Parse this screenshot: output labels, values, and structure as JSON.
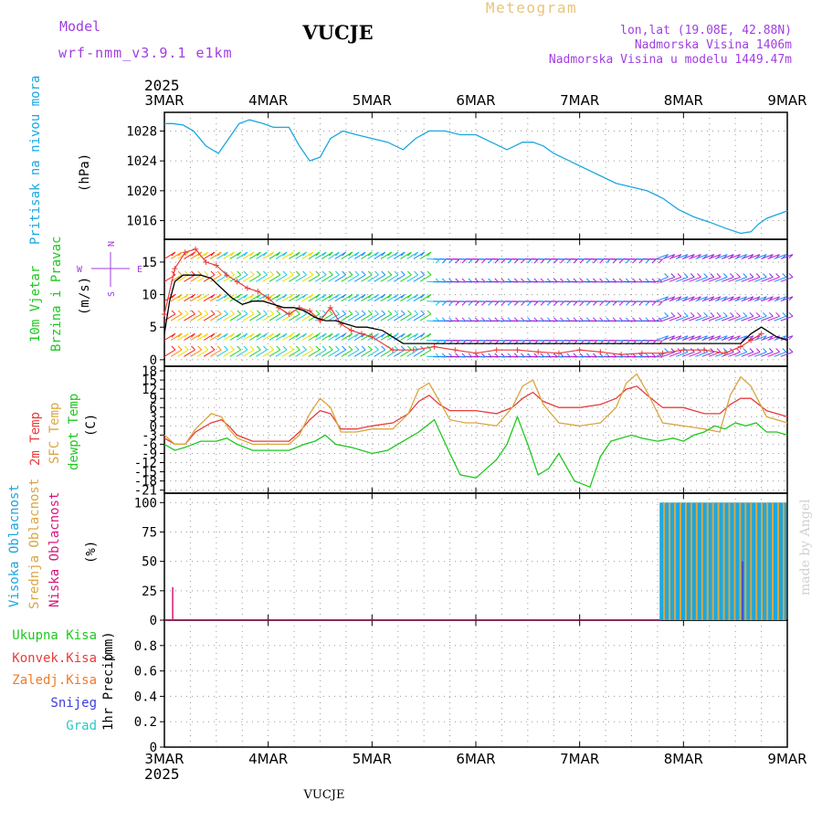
{
  "header": {
    "model_label": "Model",
    "model_name": "wrf-nmm_v3.9.1 e1km",
    "station": "VUCJE",
    "meteogram": "Meteogram",
    "coords": "lon,lat (19.08E, 42.88N)",
    "elevation": "Nadmorska Visina 1406m",
    "model_elevation": "Nadmorska Visina u modelu 1449.47m",
    "year_top": "2025",
    "year_bottom": "2025",
    "footer_station": "VUCJE",
    "credit": "made by Angel"
  },
  "colors": {
    "pressure": "#1aa7e0",
    "temp2m": "#e83c3c",
    "sfc_temp": "#d9a640",
    "dewpt": "#1ec81e",
    "wind_speed": "#000000",
    "gust": "#e83c3c",
    "high_cloud": "#1aa7e0",
    "mid_cloud": "#d9a640",
    "low_cloud": "#d6157a",
    "title_purple": "#a03ee0",
    "meteogram_gold": "#e8c47a",
    "total_precip": "#1ec81e",
    "conv_precip": "#e83c3c",
    "frozen_precip": "#f07a28",
    "snow": "#3c3ce0",
    "hail": "#2ac8c8"
  },
  "chart_data": [
    {
      "id": "pressure",
      "type": "line",
      "ylabel_name": "Pritisak na nivou mora",
      "unit": "(hPa)",
      "x_categories": [
        "3MAR",
        "4MAR",
        "5MAR",
        "6MAR",
        "7MAR",
        "8MAR",
        "9MAR"
      ],
      "ylim": [
        1013.5,
        1030.5
      ],
      "yticks": [
        1016,
        1020,
        1024,
        1028
      ],
      "grid": true,
      "x_days": [
        0,
        0.08,
        0.18,
        0.28,
        0.4,
        0.52,
        0.62,
        0.72,
        0.82,
        0.95,
        1.05,
        1.2,
        1.3,
        1.4,
        1.5,
        1.6,
        1.72,
        1.85,
        2.0,
        2.15,
        2.3,
        2.42,
        2.55,
        2.7,
        2.85,
        3.0,
        3.15,
        3.3,
        3.45,
        3.55,
        3.65,
        3.75,
        3.9,
        4.05,
        4.2,
        4.35,
        4.5,
        4.65,
        4.8,
        4.95,
        5.1,
        5.25,
        5.4,
        5.55,
        5.65,
        5.72,
        5.8,
        5.9,
        6.0
      ],
      "values": [
        1029,
        1029,
        1028.8,
        1028,
        1026,
        1025,
        1027,
        1029,
        1029.5,
        1029,
        1028.5,
        1028.5,
        1026,
        1024,
        1024.5,
        1027,
        1028,
        1027.5,
        1027,
        1026.5,
        1025.5,
        1027,
        1028,
        1028,
        1027.5,
        1027.5,
        1026.5,
        1025.5,
        1026.5,
        1026.5,
        1026,
        1025,
        1024,
        1023,
        1022,
        1021,
        1020.5,
        1020,
        1019,
        1017.5,
        1016.5,
        1015.8,
        1015,
        1014.3,
        1014.5,
        1015.5,
        1016.3,
        1016.8,
        1017.3
      ]
    },
    {
      "id": "wind",
      "type": "line",
      "ylabel_name": "10m Vjetar",
      "ylabel_name2": "Brzina i Pravac",
      "unit": "(m/s)",
      "compass_n": "N",
      "compass_s": "S",
      "compass_w": "W",
      "compass_e": "E",
      "ylim": [
        -1,
        18.5
      ],
      "yticks": [
        0,
        5,
        10,
        15
      ],
      "grid": true,
      "series": [
        {
          "role": "wind_speed",
          "x_days": [
            0,
            0.05,
            0.1,
            0.18,
            0.28,
            0.35,
            0.45,
            0.55,
            0.65,
            0.75,
            0.85,
            0.95,
            1.05,
            1.15,
            1.25,
            1.35,
            1.45,
            1.55,
            1.65,
            1.75,
            1.85,
            1.95,
            2.1,
            2.3,
            2.5,
            2.7,
            2.9,
            3.1,
            3.3,
            3.5,
            3.7,
            3.9,
            4.1,
            4.3,
            4.5,
            4.7,
            4.9,
            5.1,
            5.3,
            5.45,
            5.55,
            5.65,
            5.75,
            5.9,
            6.0
          ],
          "values": [
            4,
            9,
            12,
            13,
            13,
            13,
            12.5,
            11,
            9.5,
            8.5,
            9,
            9,
            8.5,
            8,
            8,
            7.5,
            6.5,
            6,
            6,
            5.5,
            5,
            5,
            4.5,
            2.5,
            2.5,
            2.5,
            2.5,
            2.5,
            2.5,
            2.5,
            2.5,
            2.5,
            2.5,
            2.5,
            2.5,
            2.5,
            2.5,
            2.5,
            2.5,
            2.5,
            2.5,
            4,
            5,
            3.5,
            3
          ]
        },
        {
          "role": "gust",
          "x_days": [
            0,
            0.1,
            0.2,
            0.3,
            0.4,
            0.5,
            0.6,
            0.7,
            0.8,
            0.9,
            1.0,
            1.1,
            1.2,
            1.3,
            1.4,
            1.5,
            1.6,
            1.7,
            1.8,
            1.9,
            2.0,
            2.2,
            2.4,
            2.6,
            2.8,
            3.0,
            3.2,
            3.4,
            3.6,
            3.8,
            4.0,
            4.2,
            4.4,
            4.6,
            4.8,
            5.0,
            5.2,
            5.4,
            5.55,
            5.65,
            5.75
          ],
          "values": [
            7,
            14,
            16.5,
            17,
            15,
            14.5,
            13,
            12,
            11,
            10.5,
            9.5,
            8,
            7,
            8,
            7.5,
            6,
            8,
            5.5,
            4.5,
            4,
            3.5,
            1.5,
            1.5,
            2,
            1.5,
            1,
            1.5,
            1.5,
            1.2,
            1.0,
            1.5,
            1.2,
            0.8,
            1.0,
            1.0,
            1.5,
            1.5,
            1.0,
            2,
            3,
            4
          ]
        }
      ]
    },
    {
      "id": "temperature",
      "type": "line",
      "ylabel_name1": "2m Temp",
      "ylabel_name2": "SFC Temp",
      "ylabel_name3": "dewpt Temp",
      "unit": "(C)",
      "ylim": [
        -22,
        19.5
      ],
      "yticks": [
        -21,
        -18,
        -15,
        -12,
        -9,
        -6,
        -3,
        0,
        3,
        6,
        9,
        12,
        15,
        18
      ],
      "grid": true,
      "series": [
        {
          "role": "temp2m",
          "x_days": [
            0,
            0.1,
            0.2,
            0.3,
            0.45,
            0.55,
            0.62,
            0.7,
            0.85,
            1.0,
            1.2,
            1.3,
            1.4,
            1.5,
            1.6,
            1.7,
            1.85,
            2.0,
            2.2,
            2.35,
            2.45,
            2.55,
            2.65,
            2.75,
            2.9,
            3.0,
            3.2,
            3.35,
            3.45,
            3.55,
            3.65,
            3.8,
            4.0,
            4.2,
            4.35,
            4.45,
            4.55,
            4.65,
            4.8,
            5.0,
            5.2,
            5.35,
            5.45,
            5.55,
            5.65,
            5.8,
            6.0
          ],
          "values": [
            -4,
            -6,
            -6,
            -2,
            1,
            2,
            0,
            -3,
            -5,
            -5,
            -5,
            -2,
            2,
            5,
            4,
            -1,
            -1,
            0,
            1,
            4,
            8,
            10,
            7,
            5,
            5,
            5,
            4,
            6,
            9,
            11,
            8,
            6,
            6,
            7,
            9,
            12,
            13,
            10,
            6,
            6,
            4,
            4,
            7,
            9,
            9,
            5,
            3
          ]
        },
        {
          "role": "sfc_temp",
          "x_days": [
            0,
            0.1,
            0.2,
            0.3,
            0.45,
            0.55,
            0.62,
            0.7,
            0.85,
            1.0,
            1.2,
            1.3,
            1.4,
            1.5,
            1.6,
            1.7,
            1.85,
            2.0,
            2.2,
            2.35,
            2.45,
            2.55,
            2.65,
            2.75,
            2.9,
            3.0,
            3.2,
            3.35,
            3.45,
            3.55,
            3.65,
            3.8,
            4.0,
            4.2,
            4.35,
            4.45,
            4.55,
            4.65,
            4.8,
            5.0,
            5.2,
            5.35,
            5.45,
            5.55,
            5.65,
            5.8,
            6.0
          ],
          "values": [
            -3,
            -6,
            -6,
            -1,
            4,
            3,
            -1,
            -4,
            -6,
            -6,
            -6,
            -3,
            4,
            9,
            6,
            -2,
            -2,
            -1,
            -1,
            4,
            12,
            14,
            8,
            2,
            1,
            1,
            0,
            6,
            13,
            15,
            7,
            1,
            0,
            1,
            6,
            14,
            17,
            11,
            1,
            0,
            -1,
            -2,
            10,
            16,
            13,
            3,
            1
          ]
        },
        {
          "role": "dewpt",
          "x_days": [
            0,
            0.1,
            0.2,
            0.35,
            0.5,
            0.6,
            0.7,
            0.85,
            1.0,
            1.2,
            1.35,
            1.45,
            1.55,
            1.65,
            1.8,
            2.0,
            2.15,
            2.3,
            2.45,
            2.6,
            2.75,
            2.85,
            3.0,
            3.1,
            3.2,
            3.3,
            3.4,
            3.5,
            3.6,
            3.7,
            3.8,
            3.95,
            4.1,
            4.2,
            4.3,
            4.4,
            4.5,
            4.6,
            4.75,
            4.9,
            5.0,
            5.1,
            5.2,
            5.3,
            5.4,
            5.5,
            5.6,
            5.7,
            5.8,
            5.9,
            6.0
          ],
          "values": [
            -6,
            -8,
            -7,
            -5,
            -5,
            -4,
            -6,
            -8,
            -8,
            -8,
            -6,
            -5,
            -3,
            -6,
            -7,
            -9,
            -8,
            -5,
            -2,
            2,
            -9,
            -16,
            -17,
            -14,
            -11,
            -6,
            3,
            -6,
            -16,
            -14,
            -9,
            -18,
            -20,
            -10,
            -5,
            -4,
            -3,
            -4,
            -5,
            -4,
            -5,
            -3,
            -2,
            0,
            -1,
            1,
            0,
            1,
            -2,
            -2,
            -3
          ]
        }
      ]
    },
    {
      "id": "cloud",
      "type": "bar",
      "ylabel_name1": "Visoka Oblacnost",
      "ylabel_name2": "Srednja Oblacnost",
      "ylabel_name3": "Niska Oblacnost",
      "unit": "(%)",
      "ylim": [
        0,
        108
      ],
      "yticks": [
        0,
        25,
        50,
        75,
        100
      ],
      "grid": true,
      "cloud_start_day": 4.78,
      "low_spike_day": 0.08,
      "low_spike_value": 28
    },
    {
      "id": "precip",
      "type": "bar",
      "ylabel_name": "1hr Precip",
      "unit": "(mm)",
      "legend": [
        "Ukupna Kisa",
        "Konvek.Kisa",
        "Zaledj.Kisa",
        "Snijeg",
        "Grad"
      ],
      "ylim": [
        0,
        1.0
      ],
      "yticks": [
        0,
        0.2,
        0.4,
        0.6,
        0.8
      ],
      "ytick_labels": [
        "0",
        "0.2",
        "0.4",
        "0.6",
        "0.8"
      ],
      "grid": true,
      "values": []
    }
  ]
}
